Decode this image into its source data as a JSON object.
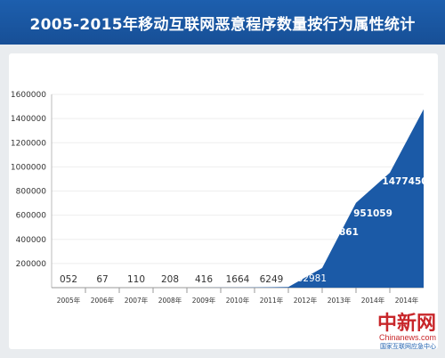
{
  "header": {
    "title": "2005-2015年移动互联网恶意程序数量按行为属性统计"
  },
  "chart_data": {
    "type": "area",
    "title": "2005-2015年移动互联网恶意程序数量按行为属性统计",
    "categories": [
      "2005年",
      "2006年",
      "2007年",
      "2008年",
      "2009年",
      "2010年",
      "2011年",
      "2012年",
      "2013年",
      "2014年",
      "2014年"
    ],
    "values": [
      52,
      67,
      110,
      208,
      416,
      1664,
      6249,
      162981,
      702861,
      951059,
      1477450
    ],
    "value_labels": [
      "052",
      "67",
      "110",
      "208",
      "416",
      "1664",
      "6249",
      "162981",
      "702861",
      "951059",
      "1477450"
    ],
    "yticks": [
      200000,
      400000,
      600000,
      800000,
      1000000,
      1200000,
      1400000,
      1600000
    ],
    "ylim": [
      0,
      1600000
    ],
    "colors": {
      "area": "#1b5aa7"
    }
  },
  "watermark": {
    "text_cn": "中新网",
    "text_en": "Chinanews.com",
    "org": "国家互联网应急中心"
  }
}
